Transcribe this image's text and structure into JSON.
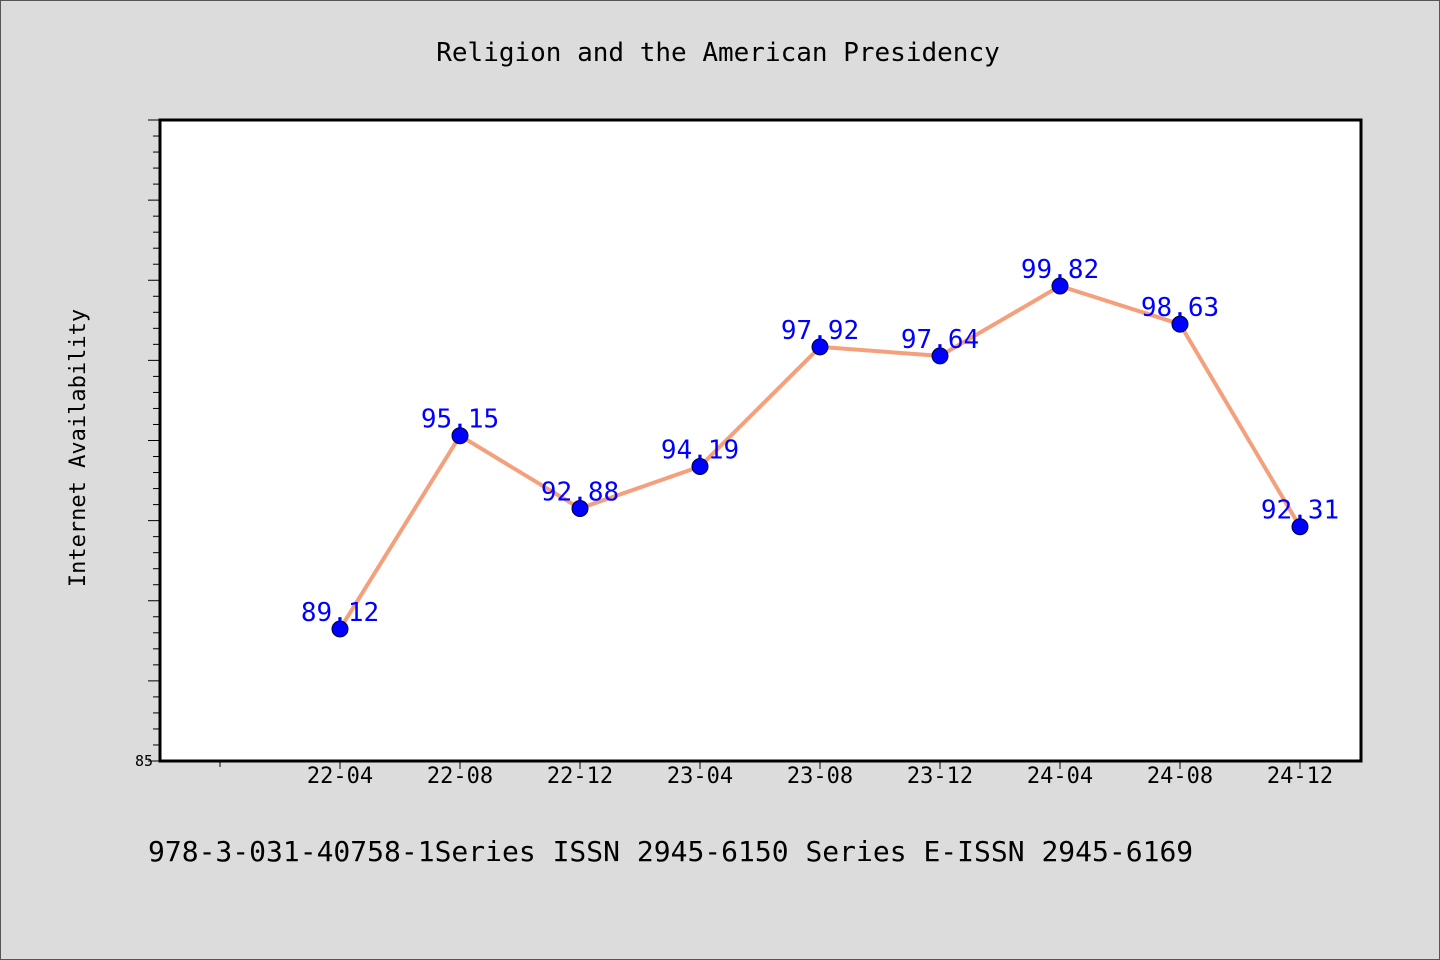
{
  "chart_data": {
    "type": "line",
    "title": "Religion and the American Presidency",
    "xlabel": "",
    "ylabel": "Internet Availability",
    "categories": [
      "22-04",
      "22-08",
      "22-12",
      "23-04",
      "23-08",
      "23-12",
      "24-04",
      "24-08",
      "24-12"
    ],
    "series": [
      {
        "values": [
          89.12,
          95.15,
          92.88,
          94.19,
          97.92,
          97.64,
          99.82,
          98.63,
          92.31
        ]
      }
    ],
    "data_labels": [
      "89.12",
      "95.15",
      "92.88",
      "94.19",
      "97.92",
      "97.64",
      "99.82",
      "98.63",
      "92.31"
    ],
    "ylim": [
      85,
      105
    ],
    "ytick_labels": [
      "85"
    ],
    "grid": false,
    "legend": "none",
    "colors": {
      "line": "#f4a07c",
      "marker": "#0000ff",
      "data_label": "#0000ff",
      "background": "#dcdcdc",
      "plot_background": "#ffffff"
    }
  },
  "footer": {
    "text": "978-3-031-40758-1Series ISSN 2945-6150 Series E-ISSN 2945-6169"
  }
}
